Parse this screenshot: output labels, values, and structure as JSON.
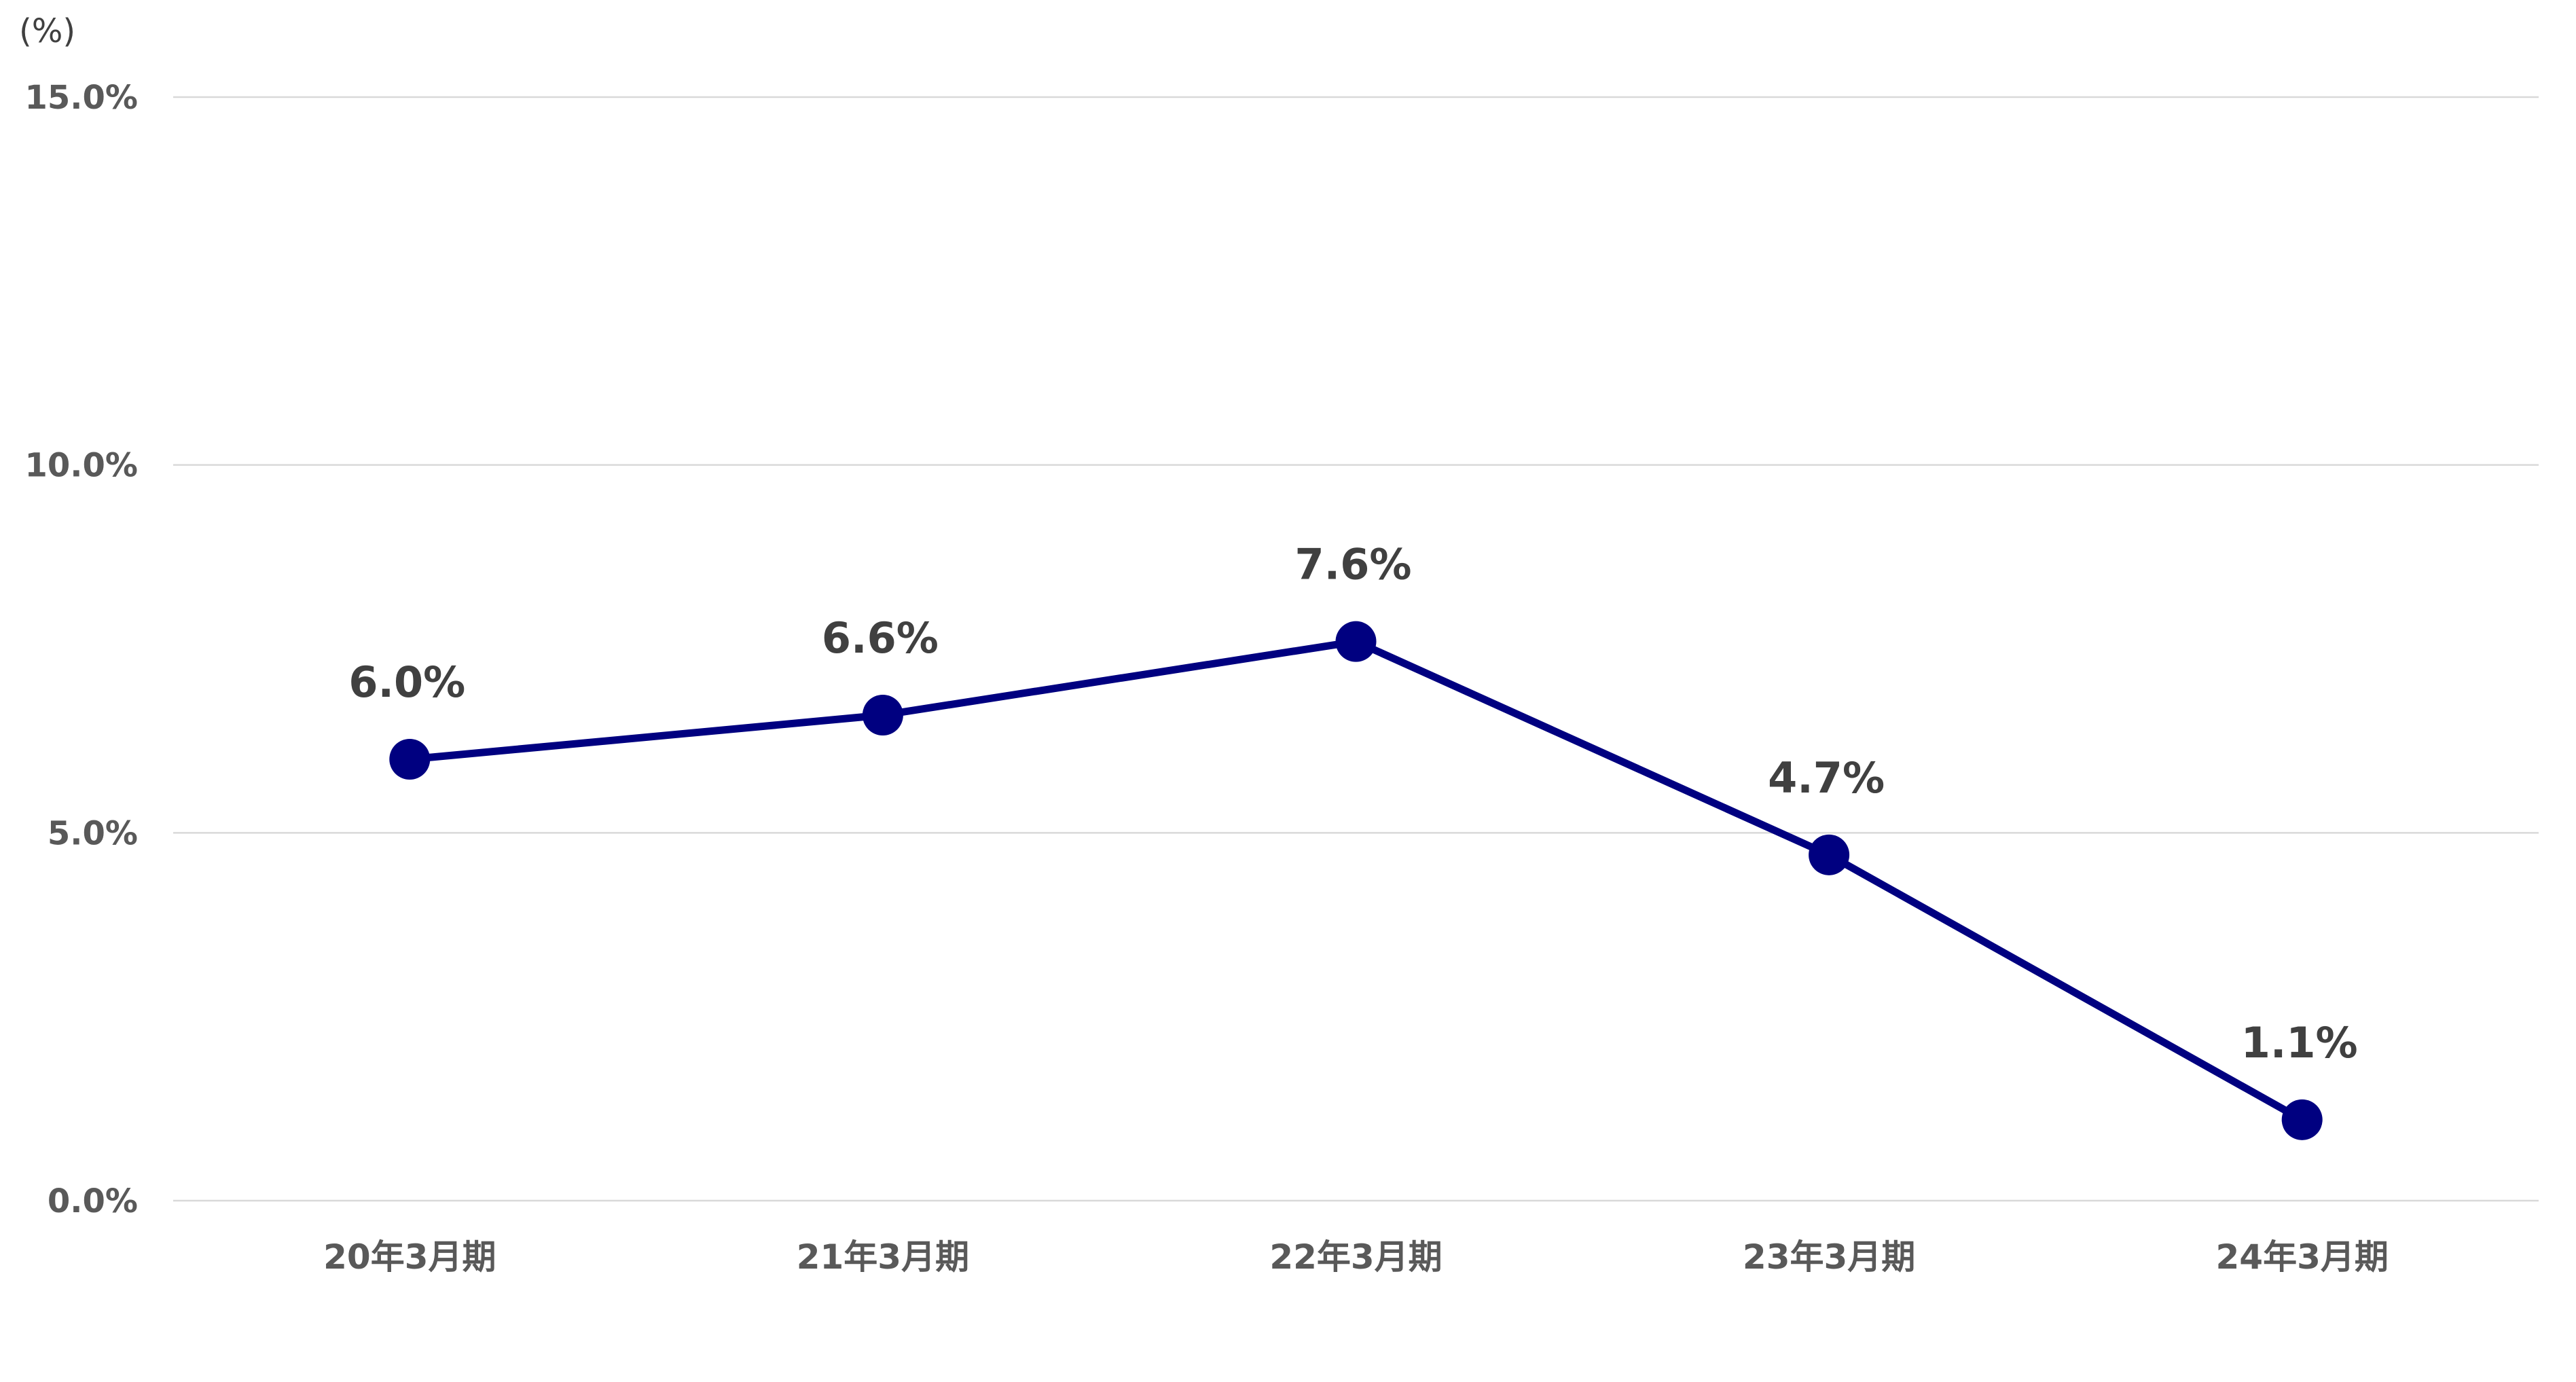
{
  "chart_data": {
    "type": "line",
    "title": "",
    "xlabel": "",
    "ylabel": "(%)",
    "categories": [
      "20年3月期",
      "21年3月期",
      "22年3月期",
      "23年3月期",
      "24年3月期"
    ],
    "series": [
      {
        "values": [
          6.0,
          6.6,
          7.6,
          4.7,
          1.1
        ],
        "labels": [
          "6.0%",
          "6.6%",
          "7.6%",
          "4.7%",
          "1.1%"
        ],
        "color": "#000080"
      }
    ],
    "ylim": [
      0,
      15
    ],
    "yticks": [
      0,
      5,
      10,
      15
    ],
    "ytick_labels": [
      "0.0%",
      "5.0%",
      "10.0%",
      "15.0%"
    ],
    "grid": true,
    "legend": "none",
    "markers": true
  }
}
